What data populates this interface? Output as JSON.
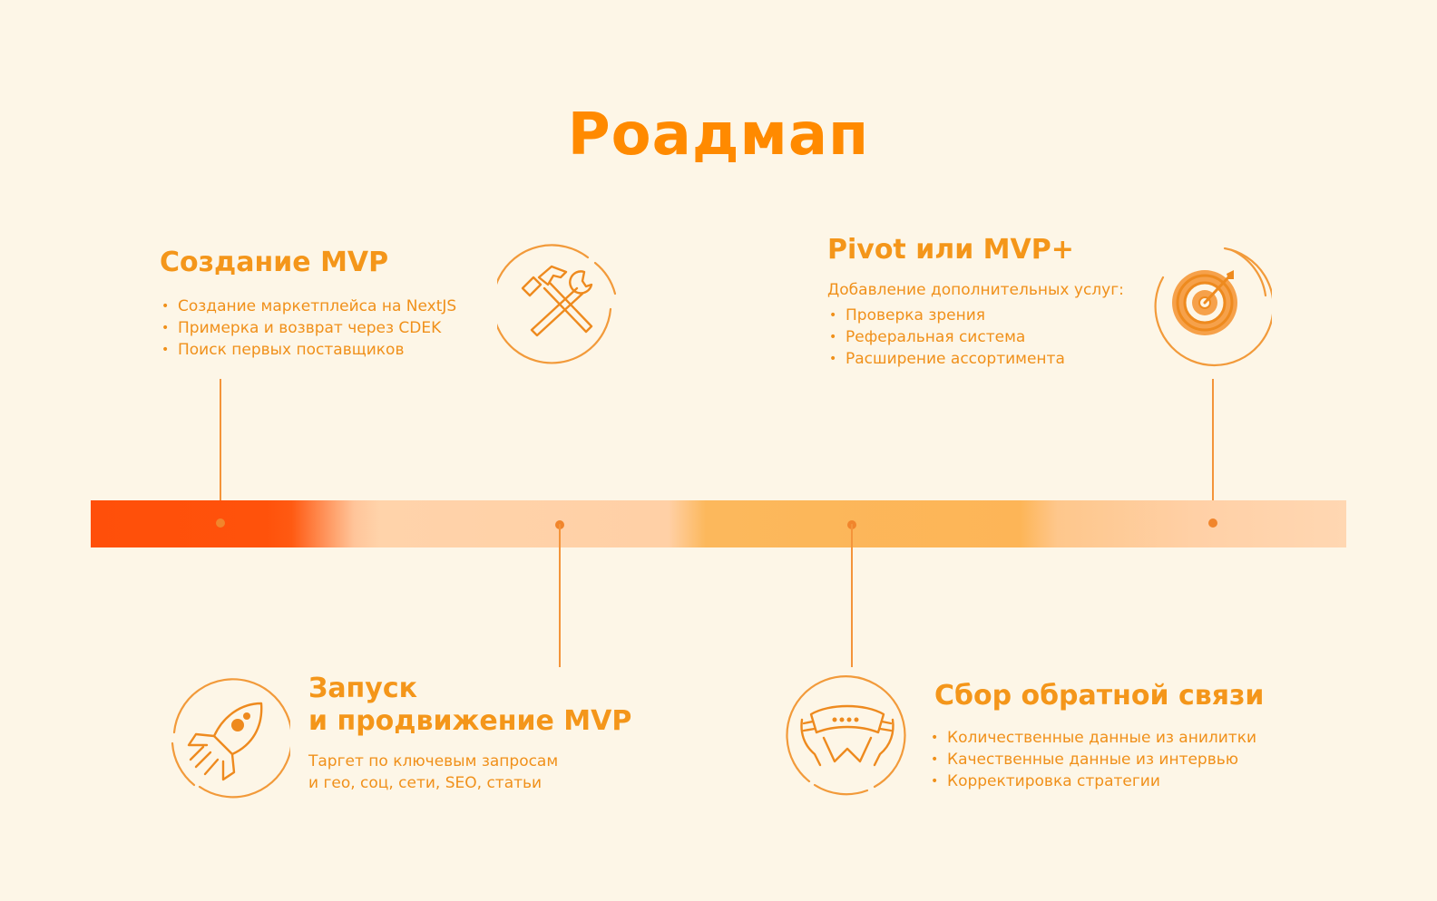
{
  "title": "Роадмап",
  "stages": {
    "mvp": {
      "title": "Создание MVP",
      "bullets": [
        "Создание маркетплейса на NextJS",
        "Примерка и возврат через CDEK",
        "Поиск первых поставщиков"
      ],
      "icon": "hammer-wrench-icon"
    },
    "launch": {
      "title_line1": "Запуск",
      "title_line2": "и продвижение MVP",
      "desc_line1": "Таргет по ключевым запросам",
      "desc_line2": "и гео, соц, сети, SEO, статьи",
      "icon": "rocket-icon"
    },
    "feedback": {
      "title": "Сбор обратной связи",
      "bullets": [
        "Количественные данные из анилитки",
        "Качественные данные из интервью",
        "Корректировка стратегии"
      ],
      "icon": "feedback-hands-icon"
    },
    "pivot": {
      "title": "Pivot или MVP+",
      "subtitle": "Добавление дополнительных услуг:",
      "bullets": [
        "Проверка зрения",
        "Реферальная система",
        "Расширение ассортимента"
      ],
      "icon": "target-icon"
    }
  },
  "colors": {
    "accent": "#ff8a00",
    "text": "#f0901a",
    "background": "#fdf6e7"
  }
}
